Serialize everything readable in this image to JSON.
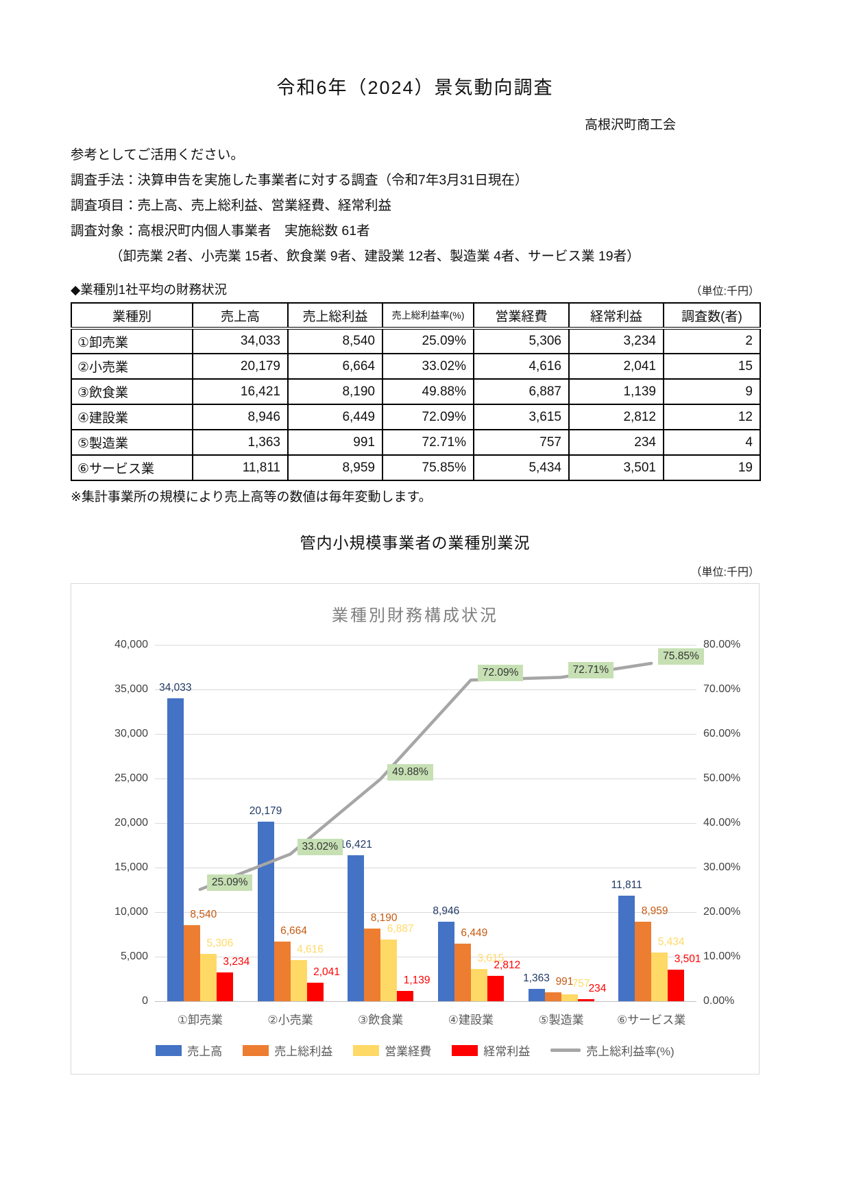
{
  "page": {
    "title": "令和6年（2024）景気動向調査",
    "org": "高根沢町商工会",
    "intro_lines": [
      "参考としてご活用ください。",
      "調査手法：決算申告を実施した事業者に対する調査（令和7年3月31日現在）",
      "調査項目：売上高、売上総利益、営業経費、経常利益",
      "調査対象：高根沢町内個人事業者　実施総数 61者"
    ],
    "breakdown_line": "（卸売業 2者、小売業 15者、飲食業 9者、建設業 12者、製造業 4者、サービス業 19者）"
  },
  "table_section": {
    "heading": "◆業種別1社平均の財務状況",
    "unit_note": "（単位:千円）",
    "columns": [
      "業種別",
      "売上高",
      "売上総利益",
      "売上総利益率(%)",
      "営業経費",
      "経常利益",
      "調査数(者)"
    ],
    "rows": [
      [
        "①卸売業",
        "34,033",
        "8,540",
        "25.09%",
        "5,306",
        "3,234",
        "2"
      ],
      [
        "②小売業",
        "20,179",
        "6,664",
        "33.02%",
        "4,616",
        "2,041",
        "15"
      ],
      [
        "③飲食業",
        "16,421",
        "8,190",
        "49.88%",
        "6,887",
        "1,139",
        "9"
      ],
      [
        "④建設業",
        "8,946",
        "6,449",
        "72.09%",
        "3,615",
        "2,812",
        "12"
      ],
      [
        "⑤製造業",
        "1,363",
        "991",
        "72.71%",
        "757",
        "234",
        "4"
      ],
      [
        "⑥サービス業",
        "11,811",
        "8,959",
        "75.85%",
        "5,434",
        "3,501",
        "19"
      ]
    ],
    "footnote": "※集計事業所の規模により売上高等の数値は毎年変動します。"
  },
  "chart_section": {
    "heading": "管内小規模事業者の業種別業況",
    "unit_note": "（単位:千円）"
  },
  "chart_data": {
    "type": "bar+line-combo",
    "title": "業種別財務構成状況",
    "categories": [
      "①卸売業",
      "②小売業",
      "③飲食業",
      "④建設業",
      "⑤製造業",
      "⑥サービス業"
    ],
    "series": [
      {
        "name": "売上高",
        "type": "bar",
        "color": "#4472C4",
        "label_color": "#1F3864",
        "values": [
          34033,
          20179,
          16421,
          8946,
          1363,
          11811
        ],
        "labels": [
          "34,033",
          "20,179",
          "16,421",
          "8,946",
          "1,363",
          "11,811"
        ]
      },
      {
        "name": "売上総利益",
        "type": "bar",
        "color": "#ED7D31",
        "label_color": "#C55A11",
        "values": [
          8540,
          6664,
          8190,
          6449,
          991,
          8959
        ],
        "labels": [
          "8,540",
          "6,664",
          "8,190",
          "6,449",
          "991",
          "8,959"
        ]
      },
      {
        "name": "営業経費",
        "type": "bar",
        "color": "#FFD966",
        "label_color": "#FFD966",
        "values": [
          5306,
          4616,
          6887,
          3615,
          757,
          5434
        ],
        "labels": [
          "5,306",
          "4,616",
          "6,887",
          "3,615",
          "757",
          "5,434"
        ]
      },
      {
        "name": "経常利益",
        "type": "bar",
        "color": "#FF0000",
        "label_color": "#FF0000",
        "values": [
          3234,
          2041,
          1139,
          2812,
          234,
          3501
        ],
        "labels": [
          "3,234",
          "2,041",
          "1,139",
          "2,812",
          "234",
          "3,501"
        ]
      },
      {
        "name": "売上総利益率(%)",
        "type": "line",
        "color": "#A6A6A6",
        "label_bg": "#C6E0B4",
        "values": [
          25.09,
          33.02,
          49.88,
          72.09,
          72.71,
          75.85
        ],
        "labels": [
          "25.09%",
          "33.02%",
          "49.88%",
          "72.09%",
          "72.71%",
          "75.85%"
        ]
      }
    ],
    "left_axis": {
      "min": 0,
      "max": 40000,
      "step": 5000,
      "ticks": [
        "40,000",
        "35,000",
        "30,000",
        "25,000",
        "20,000",
        "15,000",
        "10,000",
        "5,000",
        "0"
      ]
    },
    "right_axis": {
      "min": 0,
      "max": 80,
      "step": 10,
      "ticks": [
        "80.00%",
        "70.00%",
        "60.00%",
        "50.00%",
        "40.00%",
        "30.00%",
        "20.00%",
        "10.00%",
        "0.00%"
      ]
    },
    "grid": true,
    "legend_position": "bottom"
  }
}
